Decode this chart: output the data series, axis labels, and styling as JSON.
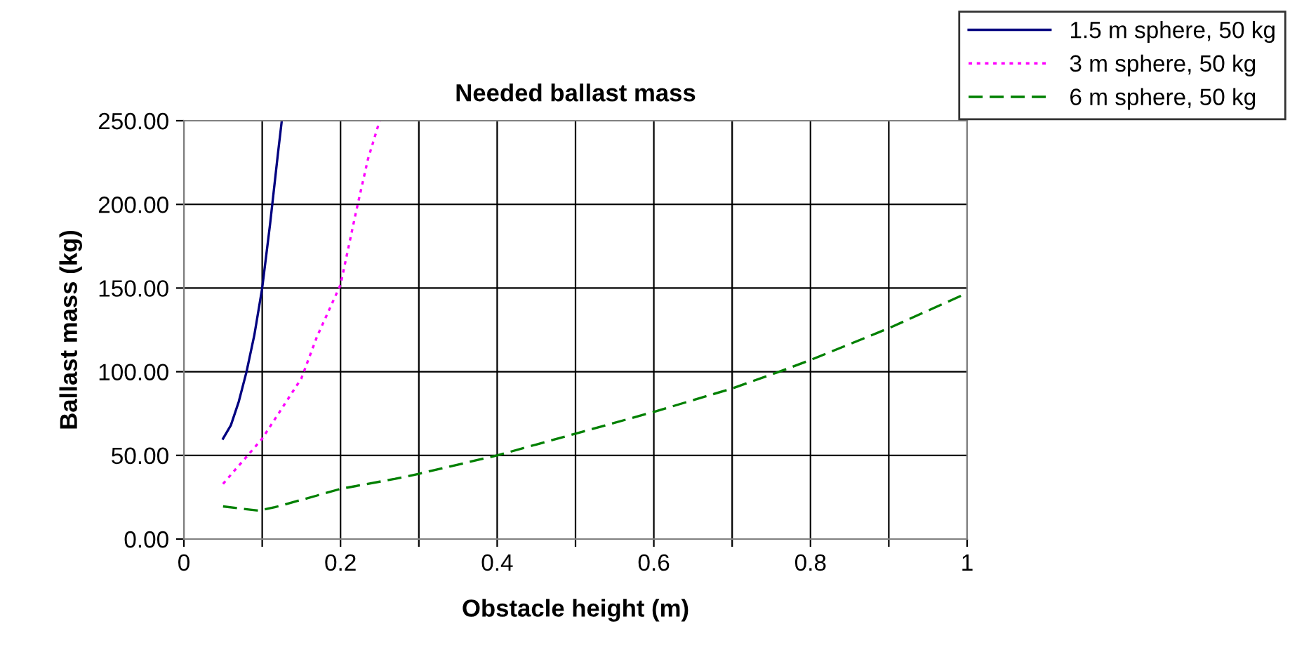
{
  "chart_data": {
    "type": "line",
    "title": "Needed ballast mass",
    "xlabel": "Obstacle height (m)",
    "ylabel": "Ballast mass (kg)",
    "xlim": [
      0,
      1
    ],
    "ylim": [
      0,
      250
    ],
    "xticks": [
      0,
      {
        "value": 0.1,
        "label": null
      },
      0.2,
      {
        "value": 0.3,
        "label": null
      },
      0.4,
      {
        "value": 0.5,
        "label": null
      },
      0.6,
      {
        "value": 0.7,
        "label": null
      },
      0.8,
      {
        "value": 0.9,
        "label": null
      },
      1
    ],
    "yticks": [
      {
        "value": 0,
        "label": "0.00"
      },
      {
        "value": 50,
        "label": "50.00"
      },
      {
        "value": 100,
        "label": "100.00"
      },
      {
        "value": 150,
        "label": "150.00"
      },
      {
        "value": 200,
        "label": "200.00"
      },
      {
        "value": 250,
        "label": "250.00"
      }
    ],
    "grid": true,
    "legend": "top right",
    "marker": "none",
    "series": [
      {
        "name": "1.5 m sphere, 50 kg",
        "color": "#000080",
        "line_style": "solid",
        "x": [
          0.05,
          0.06,
          0.07,
          0.08,
          0.09,
          0.1,
          0.11,
          0.12,
          0.125
        ],
        "values": [
          60,
          68,
          82,
          100,
          122,
          150,
          188,
          230,
          250
        ]
      },
      {
        "name": "3 m sphere, 50 kg",
        "color": "#ff00ff",
        "line_style": "dotted",
        "x": [
          0.05,
          0.1,
          0.15,
          0.17,
          0.2,
          0.21,
          0.22,
          0.235,
          0.25
        ],
        "values": [
          33,
          60,
          96,
          121,
          152,
          174,
          196,
          227,
          250
        ]
      },
      {
        "name": "6 m sphere, 50 kg",
        "color": "#008000",
        "line_style": "dashed",
        "x": [
          0.05,
          0.095,
          0.116,
          0.17,
          0.2,
          0.27,
          0.3,
          0.4,
          0.5,
          0.6,
          0.7,
          0.76,
          0.8,
          0.9,
          1.0
        ],
        "values": [
          19.5,
          17,
          19,
          26,
          30,
          36,
          39,
          50,
          63,
          76,
          90,
          100,
          107,
          126,
          147
        ]
      }
    ]
  }
}
